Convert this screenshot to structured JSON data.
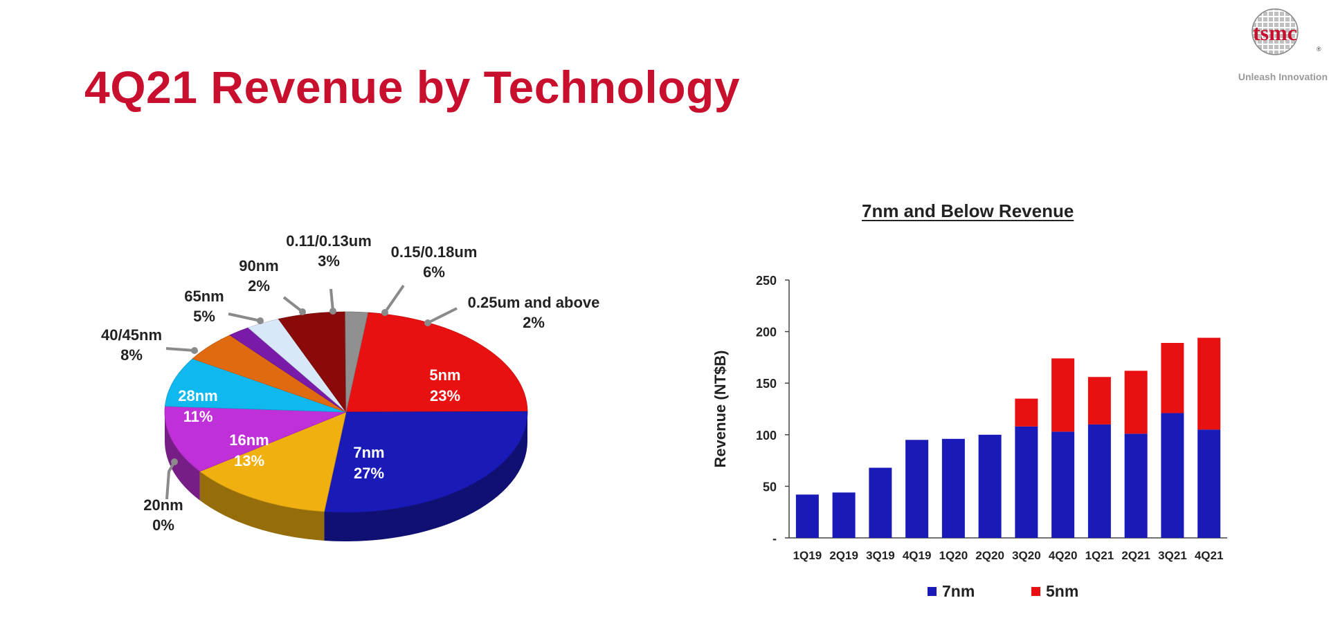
{
  "title": "4Q21 Revenue by Technology",
  "logo": {
    "brand": "tsmc",
    "tagline": "Unleash Innovation",
    "registered": "®"
  },
  "colors": {
    "title": "#c8102e",
    "blue": "#1a1ab8",
    "red": "#e81010"
  },
  "chart_data": [
    {
      "type": "pie",
      "title": "",
      "slices": [
        {
          "name": "5nm",
          "value": 23,
          "label": "23%",
          "color": "#e81010"
        },
        {
          "name": "7nm",
          "value": 27,
          "label": "27%",
          "color": "#1a1ab8"
        },
        {
          "name": "16nm",
          "value": 13,
          "label": "13%",
          "color": "#f0b010"
        },
        {
          "name": "20nm",
          "value": 0,
          "label": "0%",
          "color": "#c030c0"
        },
        {
          "name": "28nm",
          "value": 11,
          "label": "11%",
          "color": "#c030d8"
        },
        {
          "name": "40/45nm",
          "value": 8,
          "label": "8%",
          "color": "#10b8f0"
        },
        {
          "name": "65nm",
          "value": 5,
          "label": "5%",
          "color": "#e06a10"
        },
        {
          "name": "90nm",
          "value": 2,
          "label": "2%",
          "color": "#7a1aa8"
        },
        {
          "name": "0.11/0.13um",
          "value": 3,
          "label": "3%",
          "color": "#d8e8f8"
        },
        {
          "name": "0.15/0.18um",
          "value": 6,
          "label": "6%",
          "color": "#8a0a0a"
        },
        {
          "name": "0.25um and above",
          "value": 2,
          "label": "2%",
          "color": "#909090"
        }
      ]
    },
    {
      "type": "bar",
      "stacked": true,
      "title": "7nm and Below Revenue",
      "xlabel": "",
      "ylabel": "Revenue (NT$B)",
      "ylim": [
        0,
        250
      ],
      "yticks": [
        "-",
        "50",
        "100",
        "150",
        "200",
        "250"
      ],
      "categories": [
        "1Q19",
        "2Q19",
        "3Q19",
        "4Q19",
        "1Q20",
        "2Q20",
        "3Q20",
        "4Q20",
        "1Q21",
        "2Q21",
        "3Q21",
        "4Q21"
      ],
      "series": [
        {
          "name": "7nm",
          "color": "#1a1ab8",
          "values": [
            42,
            44,
            68,
            95,
            96,
            100,
            108,
            103,
            110,
            101,
            121,
            105
          ]
        },
        {
          "name": "5nm",
          "color": "#e81010",
          "values": [
            0,
            0,
            0,
            0,
            0,
            0,
            27,
            71,
            46,
            61,
            68,
            89
          ]
        }
      ],
      "legend": "bottom"
    }
  ]
}
